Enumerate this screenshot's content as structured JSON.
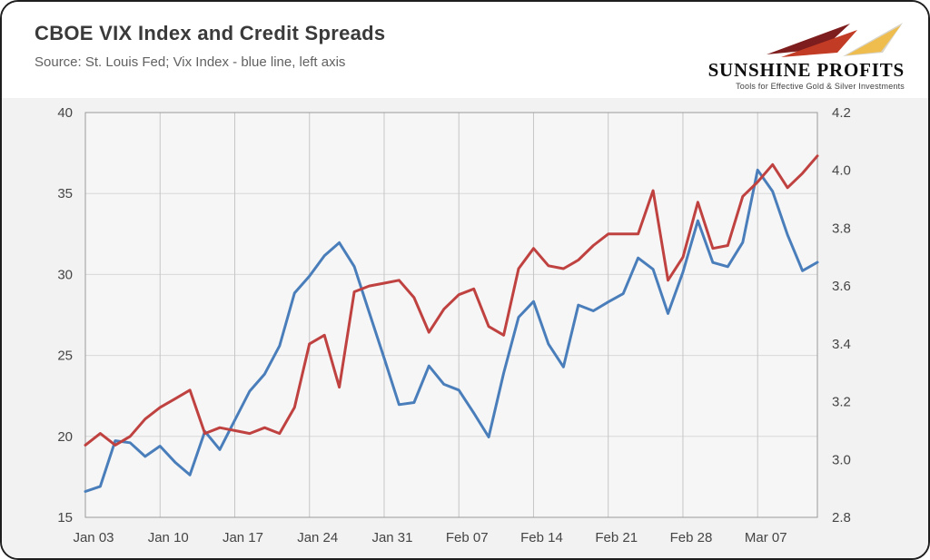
{
  "header": {
    "title": "CBOE VIX Index and Credit Spreads",
    "source_note": "Source: St. Louis Fed; Vix Index - blue line, left axis"
  },
  "logo": {
    "brand": "SUNSHINE PROFITS",
    "tagline": "Tools for Effective Gold & Silver Investments",
    "colors": {
      "arrow_dark": "#7d1d1d",
      "arrow_red": "#c23b24",
      "arrow_gold": "#eebd4e"
    }
  },
  "chart_data": {
    "type": "line",
    "title": "CBOE VIX Index and Credit Spreads",
    "grid": true,
    "legend_position": "none",
    "x_dates": [
      "Jan 03",
      "Jan 04",
      "Jan 05",
      "Jan 06",
      "Jan 07",
      "Jan 10",
      "Jan 11",
      "Jan 12",
      "Jan 13",
      "Jan 14",
      "Jan 17",
      "Jan 18",
      "Jan 19",
      "Jan 20",
      "Jan 21",
      "Jan 24",
      "Jan 25",
      "Jan 26",
      "Jan 27",
      "Jan 28",
      "Jan 31",
      "Feb 01",
      "Feb 02",
      "Feb 03",
      "Feb 04",
      "Feb 07",
      "Feb 08",
      "Feb 09",
      "Feb 10",
      "Feb 11",
      "Feb 14",
      "Feb 15",
      "Feb 16",
      "Feb 17",
      "Feb 18",
      "Feb 21",
      "Feb 22",
      "Feb 23",
      "Feb 24",
      "Feb 25",
      "Feb 28",
      "Mar 01",
      "Mar 02",
      "Mar 03",
      "Mar 04",
      "Mar 07",
      "Mar 08",
      "Mar 09",
      "Mar 10",
      "Mar 11"
    ],
    "x_tick_indices": [
      0,
      5,
      10,
      15,
      20,
      25,
      30,
      35,
      40,
      45
    ],
    "x_tick_labels": [
      "Jan 03",
      "Jan 10",
      "Jan 17",
      "Jan 24",
      "Jan 31",
      "Feb 07",
      "Feb 14",
      "Feb 21",
      "Feb 28",
      "Mar 07"
    ],
    "left_axis": {
      "min": 15,
      "max": 40,
      "ticks": [
        40,
        35,
        30,
        25,
        20,
        15
      ]
    },
    "right_axis": {
      "min": 2.8,
      "max": 4.2,
      "ticks": [
        4.2,
        4.0,
        3.8,
        3.6,
        3.4,
        3.2,
        3.0,
        2.8
      ]
    },
    "series": [
      {
        "name": "Vix Index",
        "axis": "left",
        "color": "#4a7ebb",
        "values": [
          16.6,
          16.91,
          19.73,
          19.61,
          18.76,
          19.4,
          18.41,
          17.62,
          20.31,
          19.19,
          21.0,
          22.79,
          23.85,
          25.59,
          28.85,
          29.9,
          31.16,
          31.96,
          30.49,
          27.66,
          24.83,
          21.96,
          22.09,
          24.35,
          23.22,
          22.86,
          21.44,
          19.96,
          23.91,
          27.36,
          28.33,
          25.7,
          24.29,
          28.11,
          27.75,
          28.3,
          28.81,
          31.02,
          30.32,
          27.59,
          30.15,
          33.32,
          30.74,
          30.48,
          31.98,
          36.45,
          35.13,
          32.45,
          30.23,
          30.75
        ]
      },
      {
        "name": "Credit Spreads",
        "axis": "right",
        "color": "#bf4240",
        "values": [
          3.05,
          3.09,
          3.05,
          3.08,
          3.14,
          3.18,
          3.21,
          3.24,
          3.09,
          3.11,
          3.1,
          3.09,
          3.11,
          3.09,
          3.18,
          3.4,
          3.43,
          3.25,
          3.58,
          3.6,
          3.61,
          3.62,
          3.56,
          3.44,
          3.52,
          3.57,
          3.59,
          3.46,
          3.43,
          3.66,
          3.73,
          3.67,
          3.66,
          3.69,
          3.74,
          3.78,
          3.78,
          3.78,
          3.93,
          3.62,
          3.7,
          3.89,
          3.73,
          3.74,
          3.91,
          3.96,
          4.02,
          3.94,
          3.99,
          4.05
        ]
      }
    ]
  }
}
